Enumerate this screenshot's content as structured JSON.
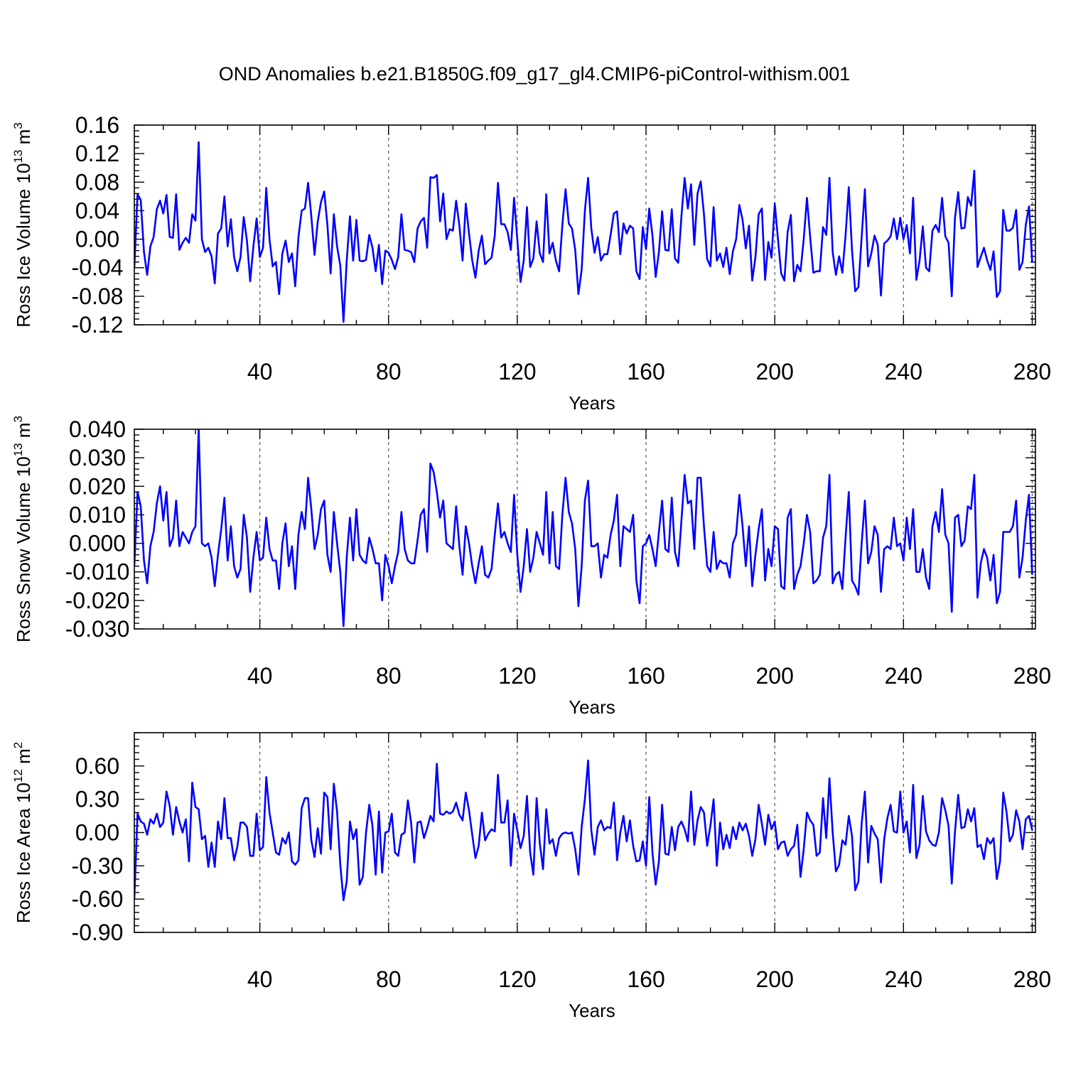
{
  "title": "OND Anomalies b.e21.B1850G.f09_g17_gl4.CMIP6-piControl-withism.001",
  "series_color": "#0000ff",
  "chart_data": [
    {
      "type": "line",
      "ylabel": "Ross Ice Volume 10",
      "ylabel_sup": "13",
      "ylabel_unit": " m",
      "ylabel_unit_sup": "3",
      "xlabel": "Years",
      "xlim": [
        1,
        281
      ],
      "ylim": [
        -0.12,
        0.16
      ],
      "xticks": [
        40,
        80,
        120,
        160,
        200,
        240,
        280
      ],
      "xtick_labels": [
        "40",
        "80",
        "120",
        "160",
        "200",
        "240",
        "280"
      ],
      "yticks": [
        -0.12,
        -0.08,
        -0.04,
        0.0,
        0.04,
        0.08,
        0.12,
        0.16
      ],
      "ytick_labels": [
        "-0.12",
        "-0.08",
        "-0.04",
        "0.00",
        "0.04",
        "0.08",
        "0.12",
        "0.16"
      ],
      "grid": "vertical dashed at major x ticks",
      "x_start": 1,
      "values": [
        -0.04,
        0.063,
        0.055,
        -0.018,
        -0.05,
        -0.01,
        0.003,
        0.042,
        0.054,
        0.036,
        0.062,
        0.003,
        0.002,
        0.063,
        -0.015,
        -0.005,
        0.002,
        -0.005,
        0.035,
        0.026,
        0.136,
        0.0,
        -0.018,
        -0.012,
        -0.024,
        -0.062,
        0.008,
        0.015,
        0.06,
        -0.01,
        0.028,
        -0.025,
        -0.045,
        -0.025,
        0.031,
        -0.002,
        -0.059,
        -0.01,
        0.029,
        -0.025,
        -0.012,
        0.072,
        0.0,
        -0.038,
        -0.032,
        -0.077,
        -0.02,
        -0.002,
        -0.032,
        -0.02,
        -0.066,
        0.003,
        0.04,
        0.043,
        0.079,
        0.032,
        -0.022,
        0.025,
        0.052,
        0.067,
        0.02,
        -0.048,
        0.035,
        -0.01,
        -0.037,
        -0.116,
        -0.03,
        0.032,
        -0.03,
        0.027,
        -0.03,
        -0.031,
        -0.029,
        0.006,
        -0.012,
        -0.045,
        -0.008,
        -0.063,
        -0.016,
        -0.019,
        -0.029,
        -0.042,
        -0.025,
        0.035,
        -0.015,
        -0.016,
        -0.018,
        -0.032,
        0.015,
        0.025,
        0.03,
        -0.012,
        0.087,
        0.086,
        0.09,
        0.025,
        0.064,
        0.0,
        0.014,
        0.012,
        0.054,
        0.019,
        -0.03,
        0.05,
        0.008,
        -0.03,
        -0.054,
        -0.016,
        0.005,
        -0.035,
        -0.03,
        -0.026,
        0.005,
        0.079,
        0.021,
        0.021,
        0.01,
        -0.015,
        0.058,
        0.0,
        -0.06,
        -0.03,
        0.045,
        -0.039,
        -0.027,
        0.025,
        -0.02,
        -0.032,
        0.063,
        -0.02,
        -0.005,
        -0.03,
        -0.045,
        0.02,
        0.07,
        0.022,
        0.015,
        -0.015,
        -0.077,
        -0.043,
        0.04,
        0.086,
        0.015,
        -0.019,
        0.003,
        -0.03,
        -0.021,
        -0.021,
        0.006,
        0.036,
        0.039,
        -0.021,
        0.022,
        0.008,
        0.019,
        0.015,
        -0.045,
        -0.056,
        0.017,
        -0.014,
        0.043,
        0.005,
        -0.053,
        -0.018,
        0.039,
        -0.015,
        -0.016,
        0.042,
        -0.027,
        -0.033,
        0.032,
        0.086,
        0.043,
        0.077,
        -0.008,
        0.064,
        0.081,
        0.035,
        -0.028,
        -0.038,
        0.045,
        -0.03,
        -0.02,
        -0.039,
        -0.012,
        -0.049,
        -0.017,
        0.0,
        0.048,
        0.027,
        -0.013,
        0.019,
        -0.058,
        -0.025,
        0.035,
        0.043,
        -0.057,
        -0.004,
        -0.026,
        0.05,
        0.0,
        -0.048,
        -0.058,
        0.01,
        0.034,
        -0.059,
        -0.036,
        -0.045,
        0.0,
        0.058,
        0.003,
        -0.047,
        -0.045,
        -0.045,
        0.017,
        0.006,
        0.086,
        -0.018,
        -0.05,
        -0.024,
        -0.047,
        0.005,
        0.073,
        -0.015,
        -0.073,
        -0.067,
        0.003,
        0.07,
        -0.038,
        -0.02,
        0.005,
        -0.008,
        -0.079,
        -0.006,
        -0.002,
        0.004,
        0.029,
        0.0,
        0.03,
        0.0,
        0.02,
        -0.02,
        0.058,
        -0.057,
        -0.03,
        0.018,
        -0.04,
        -0.045,
        0.012,
        0.02,
        0.01,
        0.058,
        0.004,
        -0.005,
        -0.08,
        0.03,
        0.066,
        0.015,
        0.016,
        0.059,
        0.047,
        0.096,
        -0.039,
        -0.025,
        -0.012,
        -0.03,
        -0.043,
        -0.017,
        -0.081,
        -0.073,
        0.041,
        0.012,
        0.012,
        0.016,
        0.041,
        -0.043,
        -0.032,
        0.02,
        0.046,
        -0.033
      ]
    },
    {
      "type": "line",
      "ylabel": "Ross Snow Volume 10",
      "ylabel_sup": "13",
      "ylabel_unit": " m",
      "ylabel_unit_sup": "3",
      "xlabel": "Years",
      "xlim": [
        1,
        281
      ],
      "ylim": [
        -0.03,
        0.04
      ],
      "xticks": [
        40,
        80,
        120,
        160,
        200,
        240,
        280
      ],
      "xtick_labels": [
        "40",
        "80",
        "120",
        "160",
        "200",
        "240",
        "280"
      ],
      "yticks": [
        -0.03,
        -0.02,
        -0.01,
        0.0,
        0.01,
        0.02,
        0.03,
        0.04
      ],
      "ytick_labels": [
        "-0.030",
        "-0.020",
        "-0.010",
        "0.000",
        "0.010",
        "0.020",
        "0.030",
        "0.040"
      ],
      "grid": "vertical dashed at major x ticks",
      "x_start": 1,
      "values": [
        -0.008,
        0.018,
        0.013,
        -0.006,
        -0.014,
        -0.001,
        0.004,
        0.014,
        0.02,
        0.008,
        0.018,
        -0.001,
        0.002,
        0.015,
        -0.001,
        0.004,
        0.002,
        0.0,
        0.004,
        0.006,
        0.04,
        0.0,
        -0.001,
        0.0,
        -0.005,
        -0.015,
        -0.004,
        0.005,
        0.016,
        -0.006,
        0.006,
        -0.008,
        -0.012,
        -0.009,
        0.01,
        0.002,
        -0.017,
        -0.005,
        0.004,
        -0.006,
        -0.005,
        0.009,
        -0.002,
        -0.006,
        -0.006,
        -0.016,
        0.0,
        0.007,
        -0.008,
        -0.001,
        -0.016,
        0.003,
        0.011,
        0.005,
        0.023,
        0.012,
        -0.002,
        0.003,
        0.012,
        0.015,
        -0.004,
        -0.01,
        0.011,
        0.0,
        -0.01,
        -0.029,
        -0.005,
        0.009,
        -0.006,
        0.012,
        -0.004,
        -0.006,
        -0.007,
        0.002,
        -0.002,
        -0.007,
        -0.007,
        -0.02,
        -0.004,
        -0.008,
        -0.014,
        -0.008,
        -0.003,
        0.011,
        -0.002,
        -0.006,
        -0.007,
        -0.007,
        0.001,
        0.01,
        0.012,
        -0.003,
        0.028,
        0.025,
        0.018,
        0.009,
        0.015,
        0.0,
        -0.001,
        -0.002,
        0.013,
        -0.001,
        -0.011,
        0.006,
        0.0,
        -0.008,
        -0.014,
        -0.007,
        -0.001,
        -0.011,
        -0.012,
        -0.009,
        0.003,
        0.014,
        0.002,
        0.004,
        0.0,
        -0.003,
        0.017,
        -0.004,
        -0.017,
        -0.008,
        0.005,
        -0.01,
        -0.005,
        0.004,
        0.0,
        -0.004,
        0.018,
        -0.007,
        0.011,
        -0.008,
        -0.009,
        0.01,
        0.023,
        0.011,
        0.007,
        -0.002,
        -0.022,
        -0.008,
        0.015,
        0.022,
        -0.001,
        -0.001,
        0.0,
        -0.012,
        -0.004,
        -0.005,
        0.003,
        0.008,
        0.017,
        -0.008,
        0.006,
        0.005,
        0.004,
        0.01,
        -0.013,
        -0.021,
        -0.001,
        0.0,
        0.003,
        -0.002,
        -0.008,
        0.004,
        0.015,
        -0.002,
        -0.003,
        0.016,
        -0.003,
        -0.008,
        0.008,
        0.024,
        0.014,
        0.015,
        -0.002,
        0.023,
        0.023,
        0.006,
        -0.008,
        -0.01,
        0.004,
        -0.009,
        -0.006,
        -0.007,
        -0.007,
        -0.012,
        0.0,
        0.003,
        0.017,
        0.006,
        -0.008,
        0.006,
        -0.015,
        -0.004,
        0.005,
        0.012,
        -0.013,
        -0.002,
        -0.008,
        0.006,
        0.005,
        -0.015,
        -0.016,
        0.009,
        0.012,
        -0.016,
        -0.011,
        -0.008,
        0.0,
        0.01,
        0.004,
        -0.014,
        -0.013,
        -0.011,
        0.002,
        0.006,
        0.024,
        -0.014,
        -0.011,
        -0.01,
        -0.016,
        0.002,
        0.018,
        -0.013,
        -0.015,
        -0.018,
        0.0,
        0.015,
        -0.007,
        -0.003,
        0.006,
        0.003,
        -0.017,
        -0.002,
        -0.001,
        -0.002,
        0.009,
        -0.001,
        0.0,
        -0.006,
        0.009,
        -0.002,
        0.012,
        -0.01,
        -0.01,
        -0.002,
        -0.012,
        -0.016,
        0.006,
        0.011,
        0.004,
        0.019,
        0.003,
        0.0,
        -0.024,
        0.009,
        0.01,
        -0.001,
        0.001,
        0.013,
        0.012,
        0.024,
        -0.019,
        -0.007,
        -0.002,
        -0.005,
        -0.013,
        -0.004,
        -0.021,
        -0.017,
        0.004,
        0.004,
        0.004,
        0.006,
        0.015,
        -0.012,
        -0.005,
        0.008,
        0.017,
        -0.011
      ]
    },
    {
      "type": "line",
      "ylabel": "Ross Ice Area 10",
      "ylabel_sup": "12",
      "ylabel_unit": " m",
      "ylabel_unit_sup": "2",
      "xlabel": "Years",
      "xlim": [
        1,
        281
      ],
      "ylim": [
        -0.9,
        0.9
      ],
      "xticks": [
        40,
        80,
        120,
        160,
        200,
        240,
        280
      ],
      "xtick_labels": [
        "40",
        "80",
        "120",
        "160",
        "200",
        "240",
        "280"
      ],
      "yticks": [
        -0.9,
        -0.6,
        -0.3,
        0.0,
        0.3,
        0.6
      ],
      "ytick_labels": [
        "-0.90",
        "-0.60",
        "-0.30",
        "0.00",
        "0.30",
        "0.60"
      ],
      "grid": "vertical dashed at major x ticks",
      "x_start": 1,
      "values": [
        -0.6,
        0.17,
        0.1,
        0.08,
        -0.02,
        0.12,
        0.08,
        0.17,
        0.05,
        0.09,
        0.37,
        0.24,
        -0.02,
        0.23,
        0.1,
        0.0,
        0.12,
        -0.26,
        0.45,
        0.23,
        0.21,
        -0.06,
        -0.03,
        -0.31,
        -0.09,
        -0.31,
        0.1,
        -0.06,
        0.31,
        -0.05,
        -0.05,
        -0.25,
        -0.13,
        0.09,
        0.09,
        0.05,
        -0.21,
        -0.21,
        0.17,
        -0.16,
        -0.13,
        0.5,
        0.18,
        0.0,
        -0.18,
        -0.2,
        -0.05,
        -0.1,
        0.0,
        -0.26,
        -0.29,
        -0.25,
        0.22,
        0.31,
        0.31,
        -0.07,
        -0.22,
        0.04,
        -0.19,
        0.36,
        0.32,
        -0.15,
        0.44,
        0.19,
        -0.29,
        -0.61,
        -0.44,
        0.1,
        -0.06,
        0.03,
        -0.47,
        -0.4,
        0.0,
        0.25,
        0.06,
        -0.38,
        0.19,
        -0.36,
        0.0,
        0.01,
        0.17,
        -0.18,
        -0.21,
        -0.02,
        0.0,
        0.29,
        0.09,
        -0.27,
        0.09,
        0.1,
        -0.05,
        0.04,
        0.15,
        0.1,
        0.62,
        0.17,
        0.16,
        0.19,
        0.17,
        0.19,
        0.27,
        0.16,
        0.11,
        0.36,
        0.2,
        -0.02,
        -0.23,
        -0.12,
        0.18,
        -0.07,
        -0.01,
        0.03,
        0.01,
        0.52,
        0.09,
        0.09,
        0.29,
        -0.3,
        0.17,
        0.02,
        -0.14,
        -0.03,
        0.33,
        -0.18,
        -0.38,
        0.31,
        -0.1,
        -0.33,
        0.21,
        -0.1,
        -0.06,
        -0.21,
        -0.05,
        -0.01,
        0.0,
        -0.01,
        0.0,
        -0.15,
        -0.38,
        0.05,
        0.3,
        0.65,
        0.02,
        -0.2,
        0.05,
        0.11,
        0.02,
        0.05,
        0.04,
        0.27,
        -0.25,
        0.0,
        0.15,
        -0.08,
        0.11,
        -0.12,
        -0.26,
        -0.25,
        -0.08,
        -0.3,
        0.32,
        -0.18,
        -0.47,
        -0.26,
        0.25,
        -0.19,
        -0.2,
        0.05,
        -0.16,
        0.05,
        0.1,
        0.03,
        -0.08,
        0.37,
        -0.11,
        0.11,
        0.23,
        0.18,
        -0.12,
        0.06,
        0.3,
        -0.3,
        0.09,
        -0.15,
        -0.02,
        -0.14,
        0.05,
        -0.06,
        0.09,
        0.02,
        0.08,
        -0.03,
        -0.21,
        -0.06,
        0.25,
        0.08,
        -0.11,
        0.16,
        0.03,
        0.1,
        -0.15,
        -0.09,
        -0.08,
        -0.21,
        -0.15,
        -0.12,
        0.07,
        -0.4,
        -0.15,
        0.18,
        0.11,
        0.07,
        -0.21,
        -0.18,
        0.31,
        -0.05,
        0.49,
        0.0,
        -0.35,
        -0.29,
        -0.07,
        -0.11,
        0.15,
        -0.03,
        -0.52,
        -0.44,
        0.08,
        0.37,
        -0.27,
        0.06,
        -0.01,
        -0.06,
        -0.45,
        -0.06,
        0.13,
        0.25,
        0.01,
        0.0,
        0.37,
        0.0,
        0.1,
        -0.18,
        0.43,
        -0.23,
        -0.11,
        0.33,
        0.01,
        -0.07,
        -0.11,
        -0.12,
        0.0,
        0.31,
        0.2,
        0.06,
        -0.46,
        0.01,
        0.34,
        0.04,
        0.05,
        0.21,
        0.1,
        0.22,
        -0.13,
        -0.11,
        -0.24,
        -0.05,
        -0.1,
        -0.05,
        -0.42,
        -0.26,
        0.36,
        0.19,
        -0.08,
        -0.02,
        0.2,
        0.1,
        -0.15,
        0.12,
        0.15,
        0.02
      ]
    }
  ]
}
